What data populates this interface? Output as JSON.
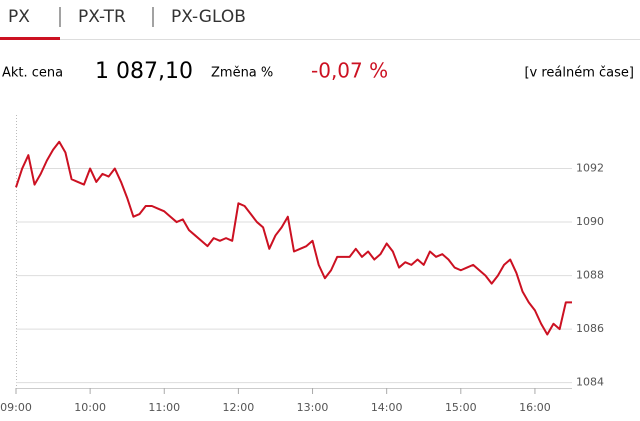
{
  "tabs": [
    "PX",
    "PX-TR",
    "PX-GLOB"
  ],
  "quote": {
    "price_label": "Akt. cena",
    "price": "1 087,10",
    "change_label": "Změna %",
    "change": "-0,07 %",
    "realtime": "[v reálném čase]"
  },
  "chart_data": {
    "type": "line",
    "color": "#cc1122",
    "grid": true,
    "x": [
      "09:00",
      "09:05",
      "09:10",
      "09:15",
      "09:20",
      "09:25",
      "09:30",
      "09:35",
      "09:40",
      "09:45",
      "09:50",
      "09:55",
      "10:00",
      "10:05",
      "10:10",
      "10:15",
      "10:20",
      "10:25",
      "10:30",
      "10:35",
      "10:40",
      "10:45",
      "10:50",
      "10:55",
      "11:00",
      "11:05",
      "11:10",
      "11:15",
      "11:20",
      "11:25",
      "11:30",
      "11:35",
      "11:40",
      "11:45",
      "11:50",
      "11:55",
      "12:00",
      "12:05",
      "12:10",
      "12:15",
      "12:20",
      "12:25",
      "12:30",
      "12:35",
      "12:40",
      "12:45",
      "12:50",
      "12:55",
      "13:00",
      "13:05",
      "13:10",
      "13:15",
      "13:20",
      "13:25",
      "13:30",
      "13:35",
      "13:40",
      "13:45",
      "13:50",
      "13:55",
      "14:00",
      "14:05",
      "14:10",
      "14:15",
      "14:20",
      "14:25",
      "14:30",
      "14:35",
      "14:40",
      "14:45",
      "14:50",
      "14:55",
      "15:00",
      "15:05",
      "15:10",
      "15:15",
      "15:20",
      "15:25",
      "15:30",
      "15:35",
      "15:40",
      "15:45",
      "15:50",
      "15:55",
      "16:00",
      "16:05",
      "16:10",
      "16:15",
      "16:20",
      "16:25",
      "16:30"
    ],
    "values": [
      1091.3,
      1092.0,
      1092.5,
      1091.4,
      1091.8,
      1092.3,
      1092.7,
      1093.0,
      1092.6,
      1091.6,
      1091.5,
      1091.4,
      1092.0,
      1091.5,
      1091.8,
      1091.7,
      1092.0,
      1091.5,
      1090.9,
      1090.2,
      1090.3,
      1090.6,
      1090.6,
      1090.5,
      1090.4,
      1090.2,
      1090.0,
      1090.1,
      1089.7,
      1089.5,
      1089.3,
      1089.1,
      1089.4,
      1089.3,
      1089.4,
      1089.3,
      1090.7,
      1090.6,
      1090.3,
      1090.0,
      1089.8,
      1089.0,
      1089.5,
      1089.8,
      1090.2,
      1088.9,
      1089.0,
      1089.1,
      1089.3,
      1088.4,
      1087.9,
      1088.2,
      1088.7,
      1088.7,
      1088.7,
      1089.0,
      1088.7,
      1088.9,
      1088.6,
      1088.8,
      1089.2,
      1088.9,
      1088.3,
      1088.5,
      1088.4,
      1088.6,
      1088.4,
      1088.9,
      1088.7,
      1088.8,
      1088.6,
      1088.3,
      1088.2,
      1088.3,
      1088.4,
      1088.2,
      1088.0,
      1087.7,
      1088.0,
      1088.4,
      1088.6,
      1088.1,
      1087.4,
      1087.0,
      1086.7,
      1086.2,
      1085.8,
      1086.2,
      1086.0,
      1087.0,
      1087.0
    ],
    "xlim": [
      "09:00",
      "16:30"
    ],
    "xticks": [
      "09:00",
      "10:00",
      "11:00",
      "12:00",
      "13:00",
      "14:00",
      "15:00",
      "16:00"
    ],
    "ylim": [
      1083.8,
      1094
    ],
    "yticks": [
      1084,
      1086,
      1088,
      1090,
      1092
    ]
  }
}
